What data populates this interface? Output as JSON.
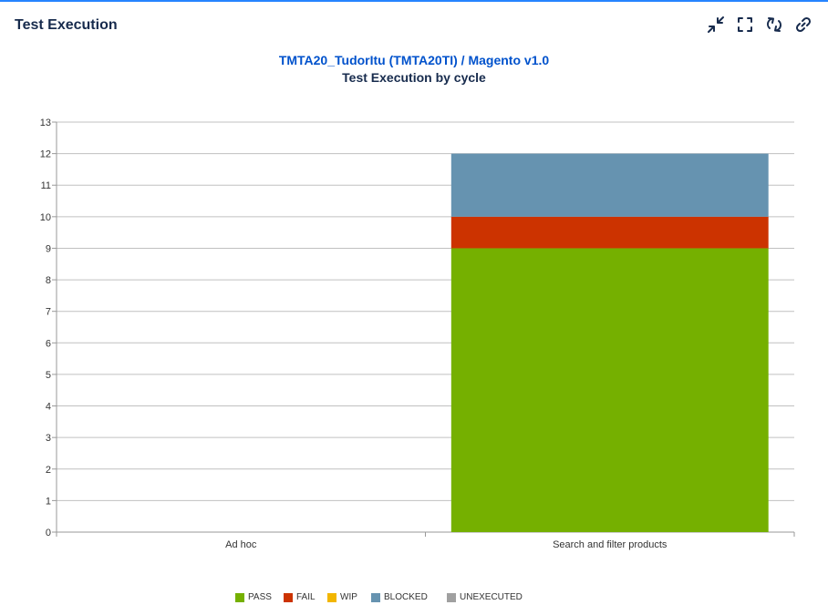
{
  "gadget": {
    "title": "Test Execution"
  },
  "toolbar": {
    "icons": [
      "collapse-icon",
      "fullscreen-icon",
      "refresh-icon",
      "link-icon"
    ]
  },
  "heading": {
    "project": "TMTA20_TudorItu (TMTA20TI)",
    "separator": " / ",
    "version": "Magento v1.0",
    "chart_title": "Test Execution by cycle"
  },
  "chart_data": {
    "type": "bar",
    "stacked": true,
    "title": "Test Execution by cycle",
    "xlabel": "",
    "ylabel": "",
    "categories": [
      "Ad hoc",
      "Search and filter products"
    ],
    "ylim": [
      0,
      13
    ],
    "yticks": [
      "0",
      "1",
      "2",
      "3",
      "4",
      "5",
      "6",
      "7",
      "8",
      "9",
      "10",
      "11",
      "12",
      "13"
    ],
    "grid": true,
    "legend_position": "bottom",
    "series": [
      {
        "name": "PASS",
        "color": "#75b000",
        "values": [
          0,
          9
        ]
      },
      {
        "name": "FAIL",
        "color": "#cc3300",
        "values": [
          0,
          1
        ]
      },
      {
        "name": "WIP",
        "color": "#f2b600",
        "values": [
          0,
          0
        ]
      },
      {
        "name": "BLOCKED",
        "color": "#6693b0",
        "values": [
          0,
          2
        ]
      },
      {
        "name": "UNEXECUTED",
        "color": "#a0a0a0",
        "values": [
          0,
          0
        ]
      }
    ]
  }
}
